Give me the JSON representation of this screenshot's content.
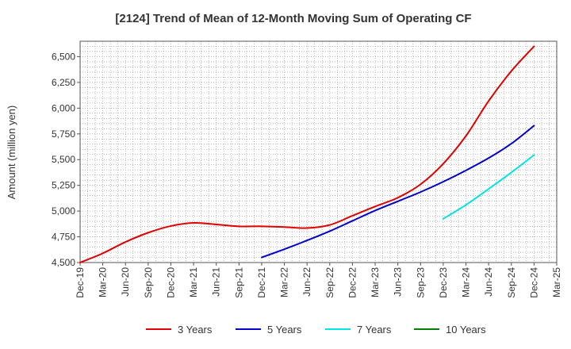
{
  "chart_data": {
    "type": "line",
    "title": "[2124]  Trend of Mean of 12-Month Moving Sum of Operating CF",
    "xlabel": "",
    "ylabel": "Amount (million yen)",
    "ylim": [
      4500,
      6650
    ],
    "yticks": [
      4500,
      4750,
      5000,
      5250,
      5500,
      5750,
      6000,
      6250,
      6500
    ],
    "ytick_labels": [
      "4,500",
      "4,750",
      "5,000",
      "5,250",
      "5,500",
      "5,750",
      "6,000",
      "6,250",
      "6,500"
    ],
    "xticks": [
      "Dec-19",
      "Mar-20",
      "Jun-20",
      "Sep-20",
      "Dec-20",
      "Mar-21",
      "Jun-21",
      "Sep-21",
      "Dec-21",
      "Mar-22",
      "Jun-22",
      "Sep-22",
      "Dec-22",
      "Mar-23",
      "Jun-23",
      "Sep-23",
      "Dec-23",
      "Mar-24",
      "Jun-24",
      "Sep-24",
      "Dec-24",
      "Mar-25"
    ],
    "grid": true,
    "legend_position": "bottom",
    "series": [
      {
        "name": "3 Years",
        "color": "#e00000",
        "start_index": 0,
        "values": [
          4500,
          4590,
          4700,
          4790,
          4855,
          4885,
          4870,
          4852,
          4852,
          4845,
          4835,
          4865,
          4955,
          5045,
          5130,
          5260,
          5460,
          5730,
          6070,
          6360,
          6600
        ]
      },
      {
        "name": "5 Years",
        "color": "#0000cc",
        "start_index": 8,
        "values": [
          4550,
          4630,
          4715,
          4805,
          4905,
          5005,
          5095,
          5185,
          5285,
          5395,
          5515,
          5655,
          5830
        ]
      },
      {
        "name": "7 Years",
        "color": "#00e5e5",
        "start_index": 16,
        "values": [
          4925,
          5060,
          5215,
          5375,
          5545
        ]
      },
      {
        "name": "10 Years",
        "color": "#008000",
        "start_index": 0,
        "values": []
      }
    ]
  }
}
